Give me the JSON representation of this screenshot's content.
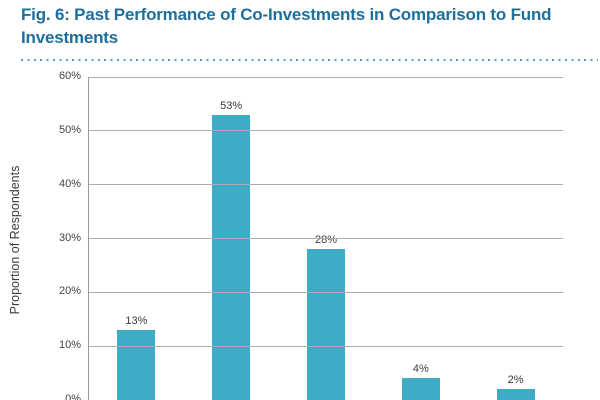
{
  "header": {
    "title": "Fig. 6: Past Performance of Co-Investments in Comparison to Fund Investments"
  },
  "chart_data": {
    "type": "bar",
    "title": "Fig. 6: Past Performance of Co-Investments in Comparison to Fund Investments",
    "ylabel": "Proportion of Respondents",
    "xlabel": "",
    "values": [
      13,
      53,
      28,
      4,
      2
    ],
    "data_labels": [
      "13%",
      "53%",
      "28%",
      "4%",
      "2%"
    ],
    "y_ticks": [
      {
        "value": 60,
        "label": "60%"
      },
      {
        "value": 50,
        "label": "50%"
      },
      {
        "value": 40,
        "label": "40%"
      },
      {
        "value": 30,
        "label": "30%"
      },
      {
        "value": 20,
        "label": "20%"
      },
      {
        "value": 10,
        "label": "10%"
      },
      {
        "value": 0,
        "label": "0%"
      }
    ],
    "ylim": [
      0,
      60
    ],
    "grid": true,
    "legend": false,
    "colors": {
      "bar": "#3EACC6",
      "gridline": "#ACACAC",
      "axis_line": "#9A9A9A",
      "title_text": "#1D6F9E",
      "separator_dots": "#4BA4C8",
      "label_text": "#3B3B3B"
    }
  }
}
